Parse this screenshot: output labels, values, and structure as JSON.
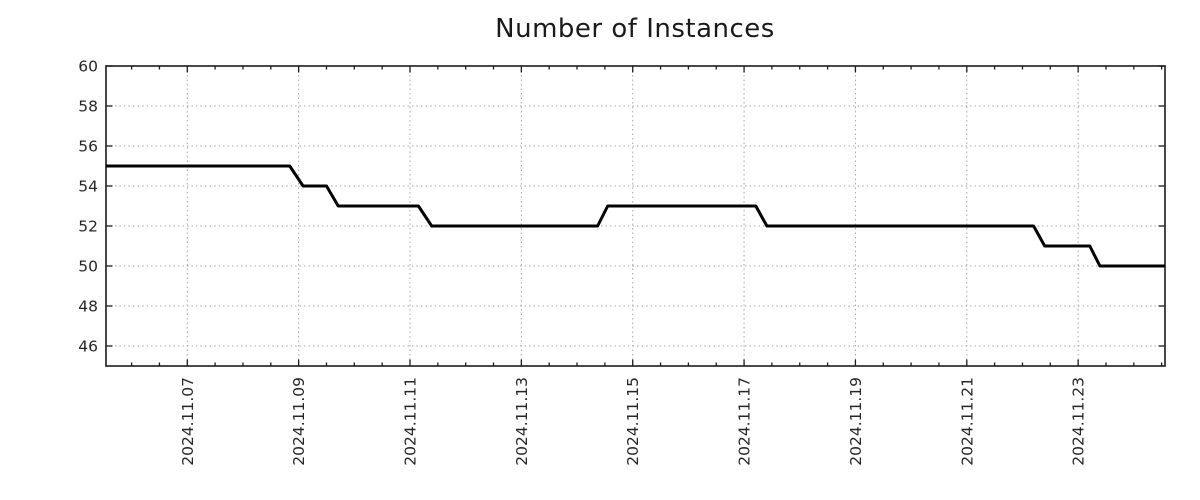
{
  "chart_data": {
    "type": "line",
    "title": "Number of Instances",
    "line_color": "#000000",
    "line_width": 3,
    "background_color": "#ffffff",
    "axis_color": "#1c1c1c",
    "grid_color": "#a6a6a6",
    "grid_style": "dotted",
    "text_color": "#262626",
    "legend": "none",
    "series": [
      {
        "name": "instances",
        "points": [
          [
            5.54,
            55
          ],
          [
            8.84,
            55
          ],
          [
            9.08,
            54
          ],
          [
            9.5,
            54
          ],
          [
            9.71,
            53
          ],
          [
            11.15,
            53
          ],
          [
            11.39,
            52
          ],
          [
            14.37,
            52
          ],
          [
            14.55,
            53
          ],
          [
            17.21,
            53
          ],
          [
            17.41,
            52
          ],
          [
            22.2,
            52
          ],
          [
            22.4,
            51
          ],
          [
            23.21,
            51
          ],
          [
            23.39,
            50
          ],
          [
            24.56,
            50
          ]
        ]
      }
    ],
    "x_axis": {
      "lim": [
        5.54,
        24.56
      ],
      "minor_tick_step": 0.5,
      "major_ticks": [
        {
          "value": 7,
          "label": "2024.11.07"
        },
        {
          "value": 9,
          "label": "2024.11.09"
        },
        {
          "value": 11,
          "label": "2024.11.11"
        },
        {
          "value": 13,
          "label": "2024.11.13"
        },
        {
          "value": 15,
          "label": "2024.11.15"
        },
        {
          "value": 17,
          "label": "2024.11.17"
        },
        {
          "value": 19,
          "label": "2024.11.19"
        },
        {
          "value": 21,
          "label": "2024.11.21"
        },
        {
          "value": 23,
          "label": "2024.11.23"
        }
      ]
    },
    "y_axis": {
      "lim": [
        45,
        60
      ],
      "major_ticks": [
        {
          "value": 46,
          "label": "46"
        },
        {
          "value": 48,
          "label": "48"
        },
        {
          "value": 50,
          "label": "50"
        },
        {
          "value": 52,
          "label": "52"
        },
        {
          "value": 54,
          "label": "54"
        },
        {
          "value": 56,
          "label": "56"
        },
        {
          "value": 58,
          "label": "58"
        },
        {
          "value": 60,
          "label": "60"
        }
      ]
    }
  }
}
